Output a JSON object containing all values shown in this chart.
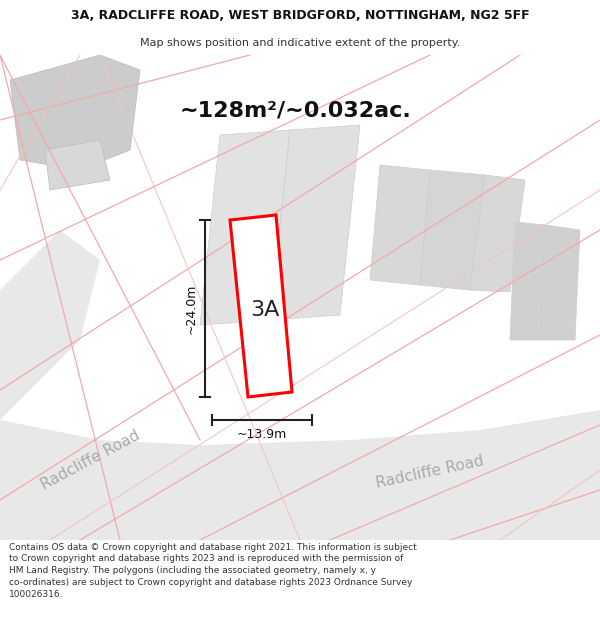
{
  "title_line1": "3A, RADCLIFFE ROAD, WEST BRIDGFORD, NOTTINGHAM, NG2 5FF",
  "title_line2": "Map shows position and indicative extent of the property.",
  "area_text": "~128m²/~0.032ac.",
  "label_3A": "3A",
  "dim_vertical": "~24.0m",
  "dim_horizontal": "~13.9m",
  "road_label_left": "Radcliffe Road",
  "road_label_right": "Radcliffe Road",
  "footer_text": "Contains OS data © Crown copyright and database right 2021. This information is subject to Crown copyright and database rights 2023 and is reproduced with the permission of HM Land Registry. The polygons (including the associated geometry, namely x, y co-ordinates) are subject to Crown copyright and database rights 2023 Ordnance Survey 100026316.",
  "bg_color": "#ffffff",
  "map_bg": "#f0f0f0",
  "property_outline_color": "#ff0000",
  "property_fill": "#ffffff",
  "dim_line_color": "#222222",
  "pink_line_color": "#f0aaaa",
  "gray_block_color": "#d0d0d0",
  "title_fontsize": 9,
  "subtitle_fontsize": 8,
  "area_fontsize": 16,
  "label_fontsize": 16,
  "dim_fontsize": 9,
  "road_fontsize": 11,
  "footer_fontsize": 6.5
}
